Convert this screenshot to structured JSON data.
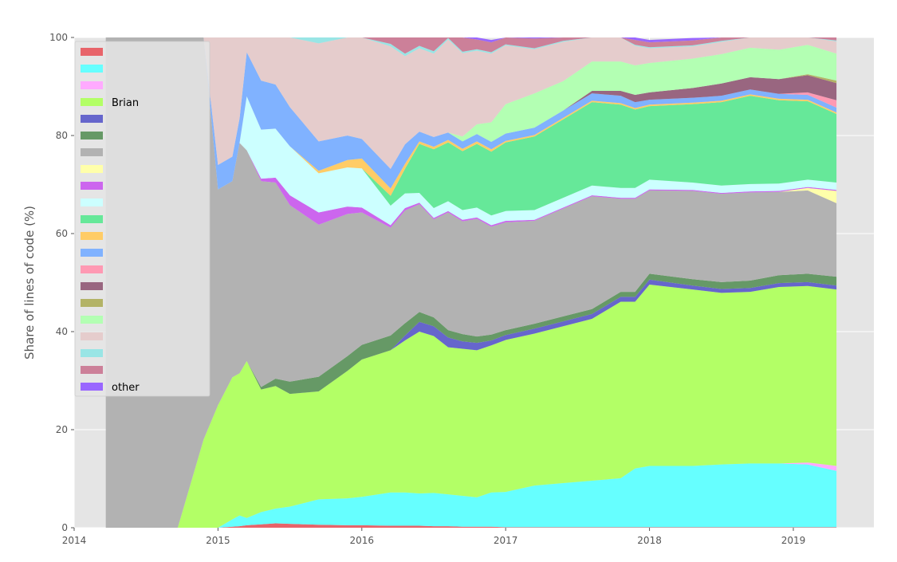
{
  "chart_data": {
    "type": "area",
    "stacked": true,
    "ylabel": "Share of lines of code (%)",
    "xlabel": "",
    "title": "",
    "xlim": [
      2014.0,
      2019.56
    ],
    "ylim": [
      0,
      100
    ],
    "x_ticks": [
      2014,
      2015,
      2016,
      2017,
      2018,
      2019
    ],
    "x_tick_labels": [
      "2014",
      "2015",
      "2016",
      "2017",
      "2018",
      "2019"
    ],
    "y_ticks": [
      0,
      20,
      40,
      60,
      80,
      100
    ],
    "y_tick_labels": [
      "0",
      "20",
      "40",
      "60",
      "80",
      "100"
    ],
    "grid": true,
    "legend_placement": "upper-left",
    "x": [
      2014.22,
      2014.5,
      2014.72,
      2014.8,
      2014.9,
      2015.0,
      2015.1,
      2015.15,
      2015.2,
      2015.3,
      2015.4,
      2015.5,
      2015.7,
      2015.9,
      2016.0,
      2016.2,
      2016.3,
      2016.4,
      2016.5,
      2016.6,
      2016.7,
      2016.8,
      2016.9,
      2017.0,
      2017.2,
      2017.4,
      2017.6,
      2017.8,
      2017.9,
      2018.0,
      2018.3,
      2018.5,
      2018.7,
      2018.9,
      2019.1,
      2019.3
    ],
    "series": [
      {
        "name": "",
        "color": "#e8646a",
        "values": [
          0,
          0,
          0,
          0,
          0,
          0,
          0.2,
          0.3,
          0.5,
          0.7,
          0.9,
          0.8,
          0.6,
          0.5,
          0.5,
          0.4,
          0.4,
          0.4,
          0.3,
          0.3,
          0.2,
          0.2,
          0.2,
          0.1,
          0.1,
          0.1,
          0.1,
          0.1,
          0.1,
          0.1,
          0.1,
          0.1,
          0.1,
          0.1,
          0.1,
          0.1
        ]
      },
      {
        "name": "",
        "color": "#66ffff",
        "values": [
          0,
          0,
          0,
          0,
          0,
          0,
          1.5,
          2.2,
          1.5,
          2.5,
          3.0,
          3.5,
          5.2,
          5.5,
          5.8,
          6.8,
          6.8,
          6.6,
          6.8,
          6.5,
          6.3,
          6.0,
          7.0,
          7.2,
          8.5,
          9.0,
          9.5,
          10.0,
          12.0,
          12.5,
          12.5,
          12.8,
          13.0,
          13.0,
          12.8,
          11.5
        ]
      },
      {
        "name": "",
        "color": "#ffaaff",
        "values": [
          0,
          0,
          0,
          0,
          0,
          0,
          0,
          0,
          0,
          0,
          0,
          0,
          0,
          0,
          0,
          0,
          0,
          0,
          0,
          0,
          0,
          0,
          0,
          0,
          0,
          0,
          0,
          0,
          0,
          0,
          0,
          0,
          0,
          0,
          0.4,
          1.0
        ]
      },
      {
        "name": "Brian",
        "color": "#b3ff66",
        "values": [
          0,
          0,
          0,
          8,
          18,
          25,
          29,
          29,
          32,
          25,
          25,
          23,
          22,
          26,
          28,
          29,
          31,
          33,
          32,
          30,
          30,
          30,
          30,
          31,
          31,
          32,
          33,
          36,
          34,
          37,
          36,
          35,
          35,
          36,
          36,
          36
        ]
      },
      {
        "name": "",
        "color": "#6666cc",
        "values": [
          0,
          0,
          0,
          0,
          0,
          0,
          0,
          0,
          0,
          0,
          0,
          0,
          0,
          0,
          0,
          0,
          1.0,
          2.0,
          2.0,
          2.0,
          1.5,
          1.5,
          1.0,
          1.0,
          1.0,
          1.0,
          1.0,
          1.0,
          1.0,
          1.0,
          0.8,
          0.8,
          0.8,
          0.8,
          0.8,
          0.8
        ]
      },
      {
        "name": "",
        "color": "#669966",
        "values": [
          0,
          0,
          0,
          0,
          0,
          0,
          0,
          0,
          0,
          0.5,
          1.5,
          2.5,
          3.0,
          3.0,
          3.0,
          3.0,
          2.5,
          2.0,
          1.8,
          1.5,
          1.5,
          1.3,
          1.2,
          1.0,
          1.0,
          1.0,
          1.0,
          1.0,
          1.0,
          1.2,
          1.3,
          1.4,
          1.5,
          1.6,
          1.7,
          1.8
        ]
      },
      {
        "name": "",
        "color": "#b2b2b2",
        "values": [
          100,
          100,
          100,
          92,
          82,
          44,
          40,
          47,
          43,
          42,
          40,
          36,
          31,
          29,
          27,
          22,
          23,
          22,
          20,
          24,
          23,
          24,
          22,
          22,
          21,
          22,
          23,
          19,
          19,
          17,
          18,
          18,
          18,
          17,
          17,
          15
        ]
      },
      {
        "name": "",
        "color": "#ffffaa",
        "values": [
          0,
          0,
          0,
          0,
          0,
          0,
          0,
          0,
          0,
          0,
          0,
          0,
          0,
          0,
          0,
          0,
          0,
          0,
          0,
          0,
          0,
          0,
          0,
          0,
          0,
          0,
          0,
          0,
          0,
          0,
          0,
          0,
          0,
          0,
          0.5,
          2.5
        ]
      },
      {
        "name": "",
        "color": "#cc66ee",
        "values": [
          0,
          0,
          0,
          0,
          0,
          0,
          0,
          0,
          0,
          0.5,
          1.0,
          2.0,
          2.5,
          1.5,
          1.0,
          0.5,
          0.5,
          0.3,
          0.3,
          0.3,
          0.3,
          0.3,
          0.3,
          0.3,
          0.2,
          0.2,
          0.2,
          0.2,
          0.2,
          0.2,
          0.2,
          0.2,
          0.2,
          0.2,
          0.2,
          0.2
        ]
      },
      {
        "name": "",
        "color": "#ccffff",
        "values": [
          0,
          0,
          0,
          0,
          0,
          0,
          0,
          0,
          11,
          10,
          10,
          10,
          8,
          8,
          8,
          4,
          3,
          2,
          2,
          2,
          2,
          2,
          2,
          2,
          2,
          2,
          2,
          2,
          2,
          2,
          1.5,
          1.5,
          1.5,
          1.5,
          1.5,
          1.5
        ]
      },
      {
        "name": "",
        "color": "#66e899",
        "values": [
          0,
          0,
          0,
          0,
          0,
          0,
          0,
          0,
          0,
          0,
          0,
          0,
          0,
          0,
          0,
          2,
          5,
          10,
          12,
          12,
          12,
          13,
          13,
          14,
          15,
          16,
          17,
          17,
          16,
          15,
          16,
          17,
          18,
          17,
          16,
          14
        ]
      },
      {
        "name": "",
        "color": "#ffcc66",
        "values": [
          0,
          0,
          0,
          0,
          0,
          0,
          0,
          0,
          0,
          0,
          0,
          0,
          0.5,
          1.5,
          2.0,
          1.5,
          1.0,
          0.5,
          0.5,
          0.5,
          0.5,
          0.5,
          0.5,
          0.3,
          0.3,
          0.3,
          0.3,
          0.3,
          0.3,
          0.3,
          0.3,
          0.3,
          0.3,
          0.3,
          0.3,
          0.3
        ]
      },
      {
        "name": "",
        "color": "#80b2ff",
        "values": [
          0,
          0,
          0,
          0,
          0,
          5,
          5,
          5,
          9,
          10,
          9,
          8,
          6,
          5,
          4,
          4,
          4,
          2,
          2,
          1.5,
          1.5,
          1.5,
          1.5,
          1.5,
          1.5,
          1.5,
          1.5,
          1.5,
          1.2,
          1.0,
          1.0,
          1.0,
          1.0,
          1.0,
          1.0,
          1.0
        ]
      },
      {
        "name": "",
        "color": "#ff99b3",
        "values": [
          0,
          0,
          0,
          0,
          0,
          0,
          0,
          0,
          0,
          0,
          0,
          0,
          0,
          0,
          0,
          0,
          0,
          0,
          0,
          0,
          0,
          0,
          0,
          0,
          0,
          0,
          0,
          0,
          0,
          0,
          0,
          0,
          0,
          0,
          0.5,
          1.5
        ]
      },
      {
        "name": "",
        "color": "#996680",
        "values": [
          0,
          0,
          0,
          0,
          0,
          0,
          0,
          0,
          0,
          0,
          0,
          0,
          0,
          0,
          0,
          0,
          0,
          0,
          0,
          0,
          0,
          0,
          0,
          0,
          0,
          0,
          0.5,
          1.0,
          1.5,
          1.5,
          2.0,
          2.5,
          2.5,
          3.0,
          3.5,
          3.5
        ]
      },
      {
        "name": "",
        "color": "#b3b366",
        "values": [
          0,
          0,
          0,
          0,
          0,
          0,
          0,
          0,
          0,
          0,
          0,
          0,
          0,
          0,
          0,
          0,
          0,
          0,
          0,
          0,
          0,
          0,
          0,
          0,
          0,
          0,
          0,
          0,
          0,
          0,
          0,
          0,
          0,
          0,
          0.2,
          0.5
        ]
      },
      {
        "name": "",
        "color": "#b3ffb3",
        "values": [
          0,
          0,
          0,
          0,
          0,
          0,
          0,
          0,
          0,
          0,
          0,
          0,
          0,
          0,
          0,
          0,
          0,
          0,
          0,
          0,
          1,
          2,
          4,
          6,
          7,
          6,
          6,
          6,
          6,
          6,
          6,
          6,
          6,
          6,
          6,
          5.5
        ]
      },
      {
        "name": "",
        "color": "#e5cccc",
        "values": [
          0,
          0,
          0,
          0,
          0,
          26,
          25,
          17,
          4,
          10,
          10,
          15,
          20,
          24,
          23,
          25,
          18,
          17,
          17,
          19,
          17,
          15,
          14,
          12,
          9,
          8,
          6,
          5,
          4,
          3,
          2.5,
          2.5,
          2.5,
          2.5,
          2.5,
          2.5
        ]
      },
      {
        "name": "",
        "color": "#99e5e5",
        "values": [
          0,
          0,
          0,
          0,
          0,
          0,
          0,
          0,
          0,
          0,
          0.5,
          1.0,
          1.5,
          1.5,
          1.0,
          0.5,
          0.5,
          0.5,
          0.5,
          0.3,
          0.3,
          0.3,
          0.3,
          0.2,
          0.2,
          0.2,
          0.2,
          0.2,
          0.2,
          0.2,
          0.2,
          0.2,
          0.2,
          0.2,
          0.2,
          0.2
        ]
      },
      {
        "name": "",
        "color": "#cc8099",
        "values": [
          0,
          0,
          0,
          0,
          0,
          0,
          0,
          0,
          0,
          0,
          2,
          2,
          3,
          3,
          5,
          4,
          4,
          3,
          3,
          3,
          3,
          2,
          2,
          2,
          2,
          1.5,
          1,
          1,
          1,
          1,
          1,
          1,
          1,
          1,
          1,
          1.2
        ]
      },
      {
        "name": "other",
        "color": "#9966ff",
        "values": [
          0,
          0,
          0,
          0,
          0,
          0,
          0,
          0,
          0,
          0.5,
          0.5,
          0.5,
          0.5,
          0.5,
          0.5,
          0.5,
          0.5,
          0.5,
          0.5,
          0.5,
          0.5,
          0.5,
          0.5,
          0.5,
          0.5,
          0.5,
          0.5,
          0.5,
          0.5,
          0.5,
          0.5,
          0.5,
          0.5,
          0.5,
          0.5,
          0.5
        ]
      }
    ]
  }
}
